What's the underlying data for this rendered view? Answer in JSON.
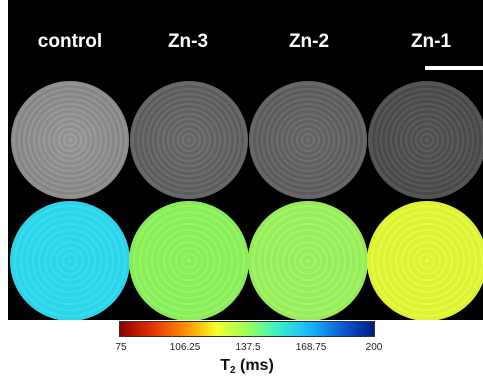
{
  "labels": [
    "control",
    "Zn-3",
    "Zn-2",
    "Zn-1"
  ],
  "colorbar": {
    "ticks": [
      "75",
      "106.25",
      "137.5",
      "168.75",
      "200"
    ],
    "title_main": "T",
    "title_sub": "2",
    "title_unit": " (ms)"
  },
  "samples": [
    {
      "mri": [
        "#9a9a9a",
        "#8a8a8a",
        "#d8d8d8"
      ],
      "t2_fill": "#2fdcf2"
    },
    {
      "mri": [
        "#6c6c6c",
        "#5f5f5f",
        "#8c8c8c"
      ],
      "t2_fill": "#8ff55e"
    },
    {
      "mri": [
        "#6a6a6a",
        "#5e5e5e",
        "#8a8a8a"
      ],
      "t2_fill": "#9ef45e"
    },
    {
      "mri": [
        "#555555",
        "#4a4a4a",
        "#6e6e6e"
      ],
      "t2_fill": "#e6fb3a"
    }
  ]
}
